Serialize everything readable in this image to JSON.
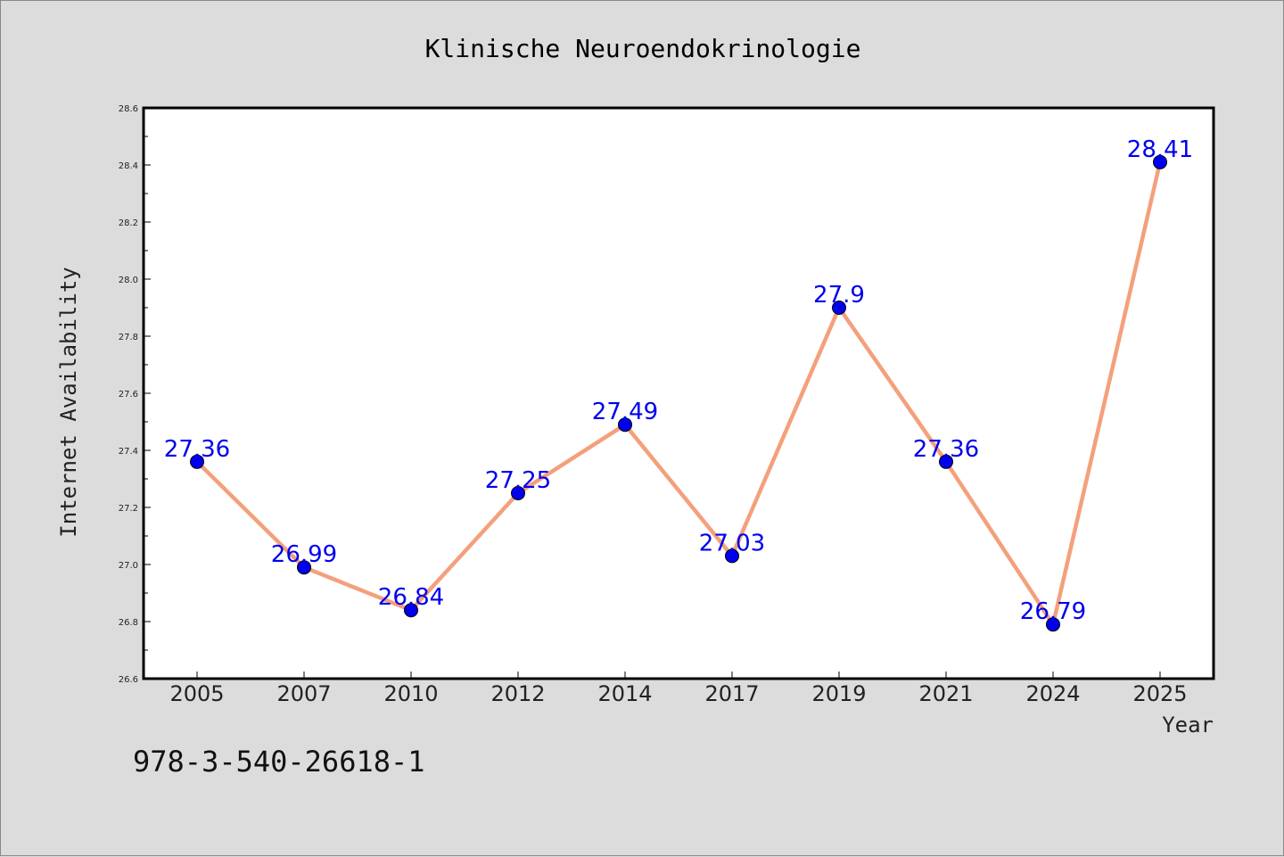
{
  "isbn": "978-3-540-26618-1",
  "colors": {
    "background": "#dcdcdc",
    "plot_background": "#ffffff",
    "line": "#f4a07c",
    "marker": "#0000ee",
    "data_label": "#0000ee"
  },
  "chart_data": {
    "type": "line",
    "title": "Klinische Neuroendokrinologie",
    "xlabel": "Year",
    "ylabel": "Internet Availability",
    "categories": [
      "2005",
      "2007",
      "2010",
      "2012",
      "2014",
      "2017",
      "2019",
      "2021",
      "2024",
      "2025"
    ],
    "values": [
      27.36,
      26.99,
      26.84,
      27.25,
      27.49,
      27.03,
      27.9,
      27.36,
      26.79,
      28.41
    ],
    "data_labels": [
      "27.36",
      "26.99",
      "26.84",
      "27.25",
      "27.49",
      "27.03",
      "27.9",
      "27.36",
      "26.79",
      "28.41"
    ],
    "ylim": [
      26.6,
      28.6
    ],
    "yticks": [
      "26.6",
      "26.8",
      "27.0",
      "27.2",
      "27.4",
      "27.6",
      "27.8",
      "28.0",
      "28.2",
      "28.4",
      "28.6"
    ],
    "grid": false,
    "legend": "none"
  }
}
